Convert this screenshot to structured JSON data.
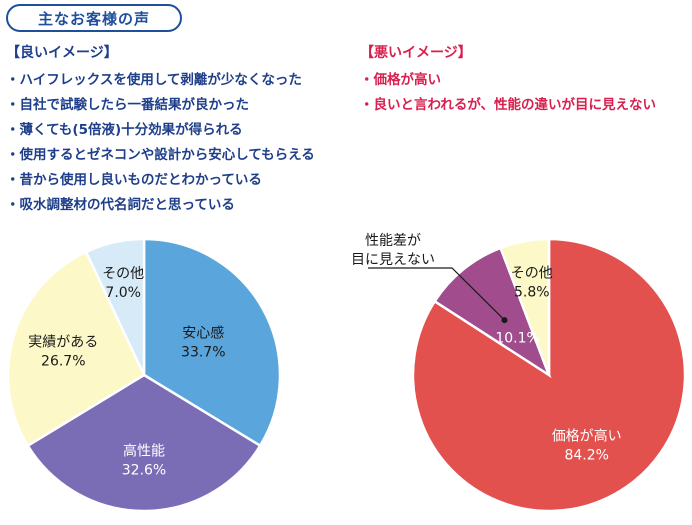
{
  "title": "主なお客様の声",
  "good": {
    "heading": "【良いイメージ】",
    "items": [
      "・ハイフレックスを使用して剥離が少なくなった",
      "・自社で試験したら一番結果が良かった",
      "・薄くても(5倍液)十分効果が得られる",
      "・使用するとゼネコンや設計から安心してもらえる",
      "・昔から使用し良いものだとわかっている",
      "・吸水調整材の代名詞だと思っている"
    ]
  },
  "bad": {
    "heading": "【悪いイメージ】",
    "items": [
      "・価格が高い",
      "・良いと言われるが、性能の違いが目に見えない"
    ]
  },
  "chart_data": [
    {
      "type": "pie",
      "slices": [
        {
          "label": "安心感",
          "value": 33.7,
          "display": "33.7%",
          "color": "#5aa6dc"
        },
        {
          "label": "高性能",
          "value": 32.6,
          "display": "32.6%",
          "color": "#7b6db5"
        },
        {
          "label": "実績がある",
          "value": 26.7,
          "display": "26.7%",
          "color": "#fcf8c8"
        },
        {
          "label": "その他",
          "value": 7.0,
          "display": "7.0%",
          "color": "#d6ebf7"
        }
      ]
    },
    {
      "type": "pie",
      "slices": [
        {
          "label": "価格が高い",
          "value": 84.2,
          "display": "84.2%",
          "color": "#e3514e"
        },
        {
          "label": "性能差が目に見えない",
          "value": 10.1,
          "display": "10.1%",
          "color": "#a04c8d",
          "callout_lines": [
            "性能差が",
            "目に見えない"
          ]
        },
        {
          "label": "その他",
          "value": 5.8,
          "display": "5.8%",
          "color": "#fcf8c8"
        }
      ]
    }
  ]
}
